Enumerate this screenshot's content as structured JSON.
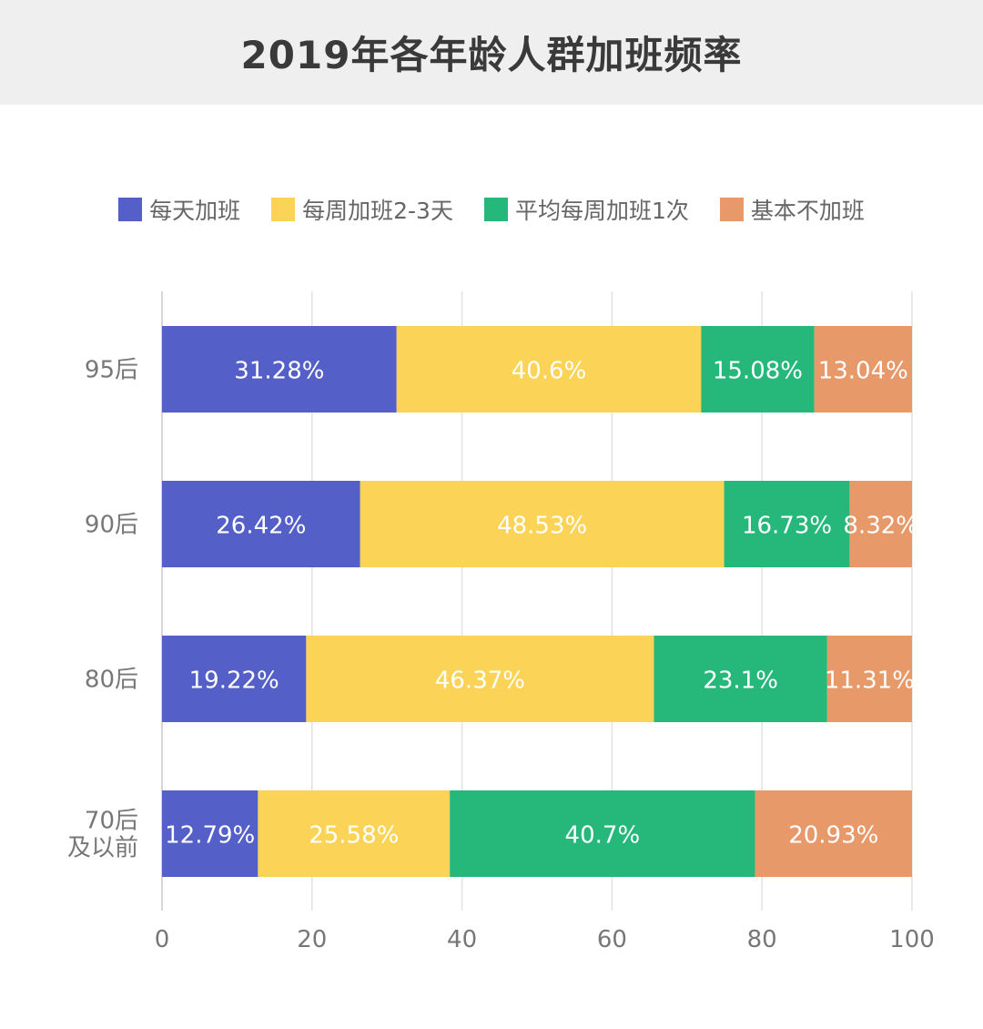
{
  "title": "2019年各年龄人群加班频率",
  "colors": {
    "每天加班": "#5460c8",
    "每周加班2-3天": "#fbd356",
    "平均每周加班1次": "#25b87a",
    "基本不加班": "#e8996a"
  },
  "chart_data": {
    "type": "bar",
    "orientation": "horizontal",
    "stacked": true,
    "title": "2019年各年龄人群加班频率",
    "categories": [
      [
        "95后"
      ],
      [
        "90后"
      ],
      [
        "80后"
      ],
      [
        "70后",
        "及以前"
      ]
    ],
    "series": [
      {
        "name": "每天加班",
        "values": [
          31.28,
          26.42,
          19.22,
          12.79
        ],
        "labels": [
          "31.28%",
          "26.42%",
          "19.22%",
          "12.79%"
        ]
      },
      {
        "name": "每周加班2-3天",
        "values": [
          40.6,
          48.53,
          46.37,
          25.58
        ],
        "labels": [
          "40.6%",
          "48.53%",
          "46.37%",
          "25.58%"
        ]
      },
      {
        "name": "平均每周加班1次",
        "values": [
          15.08,
          16.73,
          23.1,
          40.7
        ],
        "labels": [
          "15.08%",
          "16.73%",
          "23.1%",
          "40.7%"
        ]
      },
      {
        "name": "基本不加班",
        "values": [
          13.04,
          8.32,
          11.31,
          20.93
        ],
        "labels": [
          "13.04%",
          "8.32%",
          "11.31%",
          "20.93%"
        ]
      }
    ],
    "xlim": [
      0,
      100
    ],
    "xticks": [
      0,
      20,
      40,
      60,
      80,
      100
    ],
    "grid": true,
    "legend": "top"
  }
}
